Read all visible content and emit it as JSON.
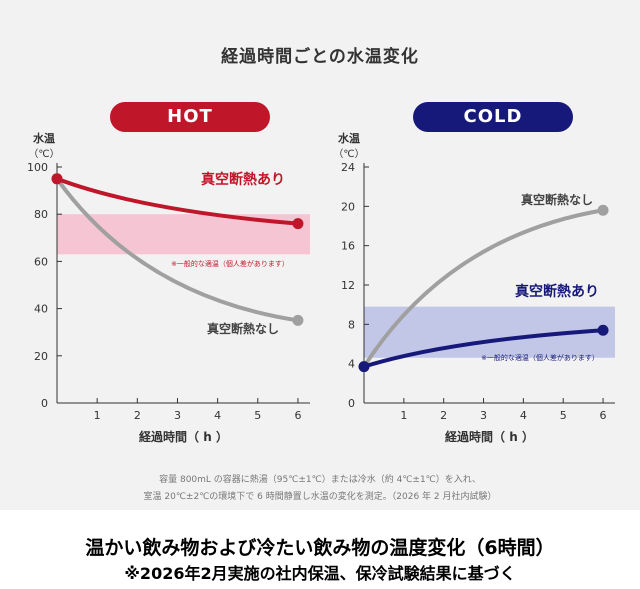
{
  "title": "経過時間ごとの水温変化",
  "charts": {
    "hot": {
      "badge": "HOT",
      "colors": {
        "badge": "#c0162a",
        "band": "#f7b6c8",
        "insulated": "#c0162a",
        "non_insulated": "#a0a0a0"
      },
      "ylabel": [
        "水温",
        "（℃）"
      ],
      "xlabel": "経過時間（ h ）",
      "yticks": [
        "0",
        "20",
        "40",
        "60",
        "80",
        "100"
      ],
      "xticks": [
        "1",
        "2",
        "3",
        "4",
        "5",
        "6"
      ],
      "label_insulated": "真空断熱あり",
      "label_non_insulated": "真空断熱なし",
      "band_note": "※一般的な適温（個人差があります）"
    },
    "cold": {
      "badge": "COLD",
      "colors": {
        "badge": "#16197a",
        "band": "#b3b8e3",
        "insulated": "#16197a",
        "non_insulated": "#a0a0a0"
      },
      "ylabel": [
        "水温",
        "（℃）"
      ],
      "xlabel": "経過時間（ h ）",
      "yticks": [
        "0",
        "4",
        "8",
        "12",
        "16",
        "20",
        "24"
      ],
      "xticks": [
        "1",
        "2",
        "3",
        "4",
        "5",
        "6"
      ],
      "label_insulated": "真空断熱あり",
      "label_non_insulated": "真空断熱なし",
      "band_note": "※一般的な適温（個人差があります）"
    }
  },
  "chart_data": [
    {
      "type": "line",
      "badge": "HOT",
      "xlabel": "経過時間（ h ）",
      "ylabel": "水温（℃）",
      "xlim": [
        0,
        6.3
      ],
      "ylim": [
        0,
        100
      ],
      "series": [
        {
          "name": "真空断熱あり",
          "x": [
            0,
            6
          ],
          "y": [
            95,
            76
          ],
          "color": "#c0162a"
        },
        {
          "name": "真空断熱なし",
          "x": [
            0,
            6
          ],
          "y": [
            95,
            35
          ],
          "color": "#a0a0a0"
        }
      ],
      "band": {
        "from": 63,
        "to": 80,
        "label": "※一般的な適温（個人差があります）"
      }
    },
    {
      "type": "line",
      "badge": "COLD",
      "xlabel": "経過時間（ h ）",
      "ylabel": "水温（℃）",
      "xlim": [
        0,
        6.3
      ],
      "ylim": [
        0,
        24
      ],
      "series": [
        {
          "name": "真空断熱あり",
          "x": [
            0,
            6
          ],
          "y": [
            3.7,
            7.4
          ],
          "color": "#16197a"
        },
        {
          "name": "真空断熱なし",
          "x": [
            0,
            6
          ],
          "y": [
            3.7,
            19.6
          ],
          "color": "#a0a0a0"
        }
      ],
      "band": {
        "from": 4.6,
        "to": 9.8,
        "label": "※一般的な適温（個人差があります）"
      }
    }
  ],
  "notes": [
    "容量 800mL の容器に熱湯（95℃±1℃）または冷水（約 4℃±1℃）を入れ、",
    "室温 20℃±2℃の環境下で 6 時間静置し水温の変化を測定。（2026 年 2 月社内試験）"
  ],
  "caption": {
    "main": "温かい飲み物および冷たい飲み物の温度変化（6時間）",
    "sub": "※2026年2月実施の社内保温、保冷試験結果に基づく"
  }
}
